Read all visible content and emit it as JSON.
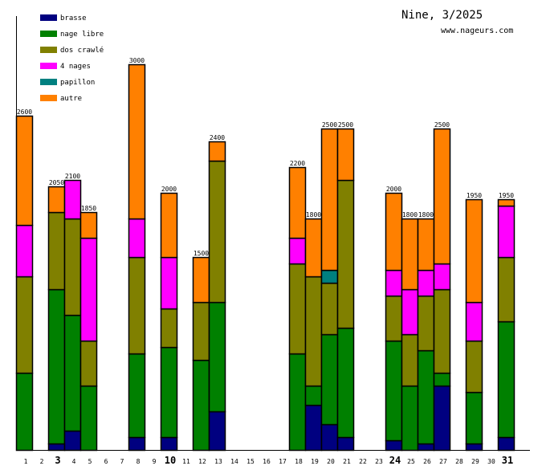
{
  "chart_data": {
    "type": "bar",
    "stacked": true,
    "title": "Nine, 3/2025",
    "subtitle": "www.nageurs.com",
    "xlabel": "",
    "ylabel": "",
    "ylim": [
      0,
      3300
    ],
    "legend_placement": "top-left",
    "categories": [
      "1",
      "2",
      "3",
      "4",
      "5",
      "6",
      "7",
      "8",
      "9",
      "10",
      "11",
      "12",
      "13",
      "14",
      "15",
      "16",
      "17",
      "18",
      "19",
      "20",
      "21",
      "22",
      "23",
      "24",
      "25",
      "26",
      "27",
      "28",
      "29",
      "30",
      "31"
    ],
    "bold_categories": [
      "3",
      "10",
      "24",
      "31"
    ],
    "series": [
      {
        "name": "brasse",
        "color": "#000080",
        "values": [
          0,
          0,
          50,
          150,
          0,
          0,
          0,
          100,
          0,
          100,
          0,
          0,
          300,
          0,
          0,
          0,
          0,
          0,
          350,
          200,
          100,
          0,
          0,
          75,
          0,
          50,
          500,
          0,
          50,
          0,
          100
        ]
      },
      {
        "name": "nage libre",
        "color": "#008000",
        "values": [
          600,
          0,
          1200,
          900,
          500,
          0,
          0,
          650,
          0,
          700,
          0,
          700,
          850,
          0,
          0,
          0,
          0,
          750,
          150,
          700,
          850,
          0,
          0,
          775,
          500,
          725,
          100,
          0,
          400,
          0,
          900
        ]
      },
      {
        "name": "dos crawlé",
        "color": "#808000",
        "values": [
          750,
          0,
          600,
          750,
          350,
          0,
          0,
          750,
          0,
          300,
          0,
          450,
          1100,
          0,
          0,
          0,
          0,
          700,
          850,
          400,
          1150,
          0,
          0,
          350,
          400,
          425,
          650,
          0,
          400,
          0,
          500
        ]
      },
      {
        "name": "4 nages",
        "color": "#ff00ff",
        "values": [
          400,
          0,
          0,
          300,
          800,
          0,
          0,
          300,
          0,
          400,
          0,
          0,
          0,
          0,
          0,
          0,
          0,
          200,
          0,
          0,
          0,
          0,
          0,
          200,
          350,
          200,
          200,
          0,
          300,
          0,
          400
        ]
      },
      {
        "name": "papillon",
        "color": "#008080",
        "values": [
          0,
          0,
          0,
          0,
          0,
          0,
          0,
          0,
          0,
          0,
          0,
          0,
          0,
          0,
          0,
          0,
          0,
          0,
          0,
          100,
          0,
          0,
          0,
          0,
          0,
          0,
          0,
          0,
          0,
          0,
          0
        ]
      },
      {
        "name": "autre",
        "color": "#ff8000",
        "values": [
          850,
          0,
          200,
          0,
          200,
          0,
          0,
          1200,
          0,
          500,
          0,
          350,
          150,
          0,
          0,
          0,
          0,
          550,
          450,
          1100,
          400,
          0,
          0,
          600,
          550,
          400,
          1050,
          0,
          800,
          0,
          50
        ]
      }
    ],
    "totals": [
      2600,
      0,
      2050,
      2100,
      1850,
      0,
      0,
      3000,
      0,
      2000,
      0,
      1500,
      2400,
      0,
      0,
      0,
      0,
      2200,
      1800,
      2500,
      2500,
      0,
      0,
      2000,
      1800,
      1800,
      2500,
      0,
      1950,
      0,
      1950
    ]
  }
}
